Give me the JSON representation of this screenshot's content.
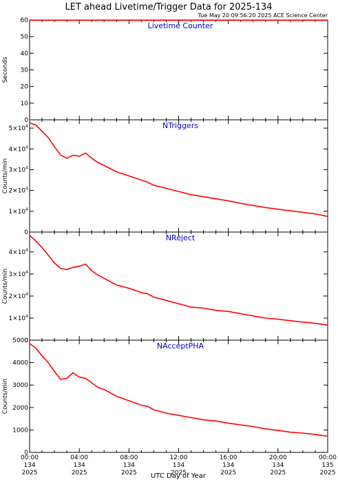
{
  "title": "LET ahead Livetime/Trigger Data for 2025-134",
  "timestamp": "Tue May 20 09:56:20 2025 ACE Science Center",
  "x_axis_label": "UTC Day of Year",
  "x_ticks": [
    {
      "x": 0,
      "lines": [
        "00:00",
        "134",
        "2025"
      ]
    },
    {
      "x": 4,
      "lines": [
        "04:00",
        "134",
        "2025"
      ]
    },
    {
      "x": 8,
      "lines": [
        "08:00",
        "134",
        "2025"
      ]
    },
    {
      "x": 12,
      "lines": [
        "12:00",
        "134",
        "2025"
      ]
    },
    {
      "x": 16,
      "lines": [
        "16:00",
        "134",
        "2025"
      ]
    },
    {
      "x": 20,
      "lines": [
        "20:00",
        "134",
        "2025"
      ]
    },
    {
      "x": 24,
      "lines": [
        "00:00",
        "135",
        "2025"
      ]
    }
  ],
  "colors": {
    "data": "#ff0000",
    "panel_title": "#0000cc",
    "axis": "#000000"
  },
  "chart_data": [
    {
      "type": "line",
      "title": "Livetime Counter",
      "ylabel": "Seconds",
      "xlim": [
        0,
        24
      ],
      "ylim": [
        0,
        60
      ],
      "yticks": [
        {
          "v": 0,
          "t": "0"
        },
        {
          "v": 10,
          "t": "10"
        },
        {
          "v": 20,
          "t": "20"
        },
        {
          "v": 30,
          "t": "30"
        },
        {
          "v": 40,
          "t": "40"
        },
        {
          "v": 50,
          "t": "50"
        },
        {
          "v": 60,
          "t": "60"
        }
      ],
      "x": [
        0,
        4,
        8,
        12,
        16,
        20,
        24
      ],
      "values": [
        59.8,
        59.8,
        59.8,
        59.8,
        59.8,
        59.8,
        59.8
      ]
    },
    {
      "type": "line",
      "title": "NTriggers",
      "ylabel": "Counts/min",
      "xlim": [
        0,
        24
      ],
      "ylim": [
        0,
        54000
      ],
      "yticks": [
        {
          "v": 0,
          "t": "0",
          "e": ""
        },
        {
          "v": 10000,
          "t": "1×10",
          "e": "4"
        },
        {
          "v": 20000,
          "t": "2×10",
          "e": "4"
        },
        {
          "v": 30000,
          "t": "3×10",
          "e": "4"
        },
        {
          "v": 40000,
          "t": "4×10",
          "e": "4"
        },
        {
          "v": 50000,
          "t": "5×10",
          "e": "4"
        }
      ],
      "x": [
        0,
        0.5,
        1.0,
        1.5,
        2.0,
        2.5,
        3.0,
        3.5,
        4.0,
        4.5,
        5.0,
        5.5,
        6.0,
        6.5,
        7.0,
        8.0,
        9.0,
        9.5,
        10.0,
        11.0,
        12.0,
        13.0,
        14.0,
        15.0,
        16.0,
        17.0,
        18.0,
        19.0,
        20.0,
        21.0,
        22.0,
        23.0,
        24.0
      ],
      "values": [
        52500,
        51500,
        48500,
        45500,
        41000,
        37000,
        35500,
        37000,
        36500,
        38000,
        35500,
        33500,
        32000,
        30500,
        29000,
        27000,
        25000,
        24000,
        22500,
        21000,
        19500,
        18000,
        17000,
        16000,
        15000,
        13800,
        12800,
        11800,
        11000,
        10200,
        9500,
        8700,
        7500
      ]
    },
    {
      "type": "line",
      "title": "NReject",
      "ylabel": "Counts/min",
      "xlim": [
        0,
        24
      ],
      "ylim": [
        0,
        49000
      ],
      "yticks": [
        {
          "v": 0,
          "t": "0",
          "e": ""
        },
        {
          "v": 10000,
          "t": "1×10",
          "e": "4"
        },
        {
          "v": 20000,
          "t": "2×10",
          "e": "4"
        },
        {
          "v": 30000,
          "t": "3×10",
          "e": "4"
        },
        {
          "v": 40000,
          "t": "4×10",
          "e": "4"
        }
      ],
      "x": [
        0,
        0.5,
        1.0,
        1.5,
        2.0,
        2.5,
        3.0,
        3.5,
        4.0,
        4.5,
        5.0,
        5.5,
        6.0,
        6.5,
        7.0,
        8.0,
        9.0,
        9.5,
        10.0,
        11.0,
        12.0,
        13.0,
        14.0,
        15.0,
        16.0,
        17.0,
        18.0,
        19.0,
        20.0,
        21.0,
        22.0,
        23.0,
        24.0
      ],
      "values": [
        47500,
        45000,
        42000,
        38500,
        35000,
        32500,
        32000,
        33000,
        33500,
        34500,
        31500,
        29500,
        28000,
        26500,
        25000,
        23500,
        21500,
        21000,
        19500,
        18000,
        16500,
        15000,
        14500,
        13500,
        13000,
        12000,
        11000,
        10000,
        9500,
        8800,
        8200,
        7600,
        6800
      ]
    },
    {
      "type": "line",
      "title": "NAcceptPHA",
      "ylabel": "Counts/min",
      "xlim": [
        0,
        24
      ],
      "ylim": [
        0,
        5000
      ],
      "yticks": [
        {
          "v": 0,
          "t": "0"
        },
        {
          "v": 1000,
          "t": "1000"
        },
        {
          "v": 2000,
          "t": "2000"
        },
        {
          "v": 3000,
          "t": "3000"
        },
        {
          "v": 4000,
          "t": "4000"
        },
        {
          "v": 5000,
          "t": "5000"
        }
      ],
      "x": [
        0,
        0.5,
        1.0,
        1.5,
        2.0,
        2.5,
        3.0,
        3.5,
        4.0,
        4.5,
        5.0,
        5.5,
        6.0,
        6.5,
        7.0,
        8.0,
        9.0,
        9.5,
        10.0,
        11.0,
        12.0,
        13.0,
        14.0,
        15.0,
        16.0,
        17.0,
        18.0,
        19.0,
        20.0,
        21.0,
        22.0,
        23.0,
        24.0
      ],
      "values": [
        4850,
        4650,
        4300,
        4000,
        3600,
        3250,
        3300,
        3550,
        3350,
        3300,
        3100,
        2900,
        2800,
        2650,
        2500,
        2300,
        2100,
        2050,
        1900,
        1750,
        1650,
        1550,
        1450,
        1400,
        1300,
        1220,
        1150,
        1050,
        980,
        900,
        860,
        800,
        720
      ]
    }
  ]
}
